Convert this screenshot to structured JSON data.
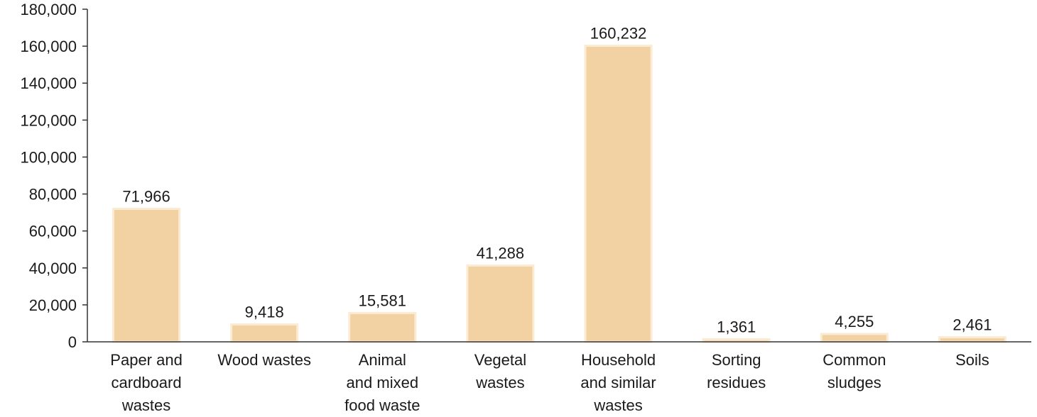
{
  "chart_data": {
    "type": "bar",
    "title": "",
    "xlabel": "",
    "ylabel": "",
    "ylim": [
      0,
      180000
    ],
    "yticks": [
      0,
      20000,
      40000,
      60000,
      80000,
      100000,
      120000,
      140000,
      160000,
      180000
    ],
    "ytick_labels": [
      "0",
      "20,000",
      "40,000",
      "60,000",
      "80,000",
      "100,000",
      "120,000",
      "140,000",
      "160,000",
      "180,000"
    ],
    "grid": false,
    "legend": "none",
    "categories": [
      [
        "Paper and",
        "cardboard",
        "wastes"
      ],
      [
        "Wood wastes"
      ],
      [
        "Animal",
        "and mixed",
        "food waste"
      ],
      [
        "Vegetal",
        "wastes"
      ],
      [
        "Household",
        "and similar",
        "wastes"
      ],
      [
        "Sorting",
        "residues"
      ],
      [
        "Common",
        "sludges"
      ],
      [
        "Soils"
      ]
    ],
    "values": [
      71966,
      9418,
      15581,
      41288,
      160232,
      1361,
      4255,
      2461
    ],
    "data_labels": [
      "71,966",
      "9,418",
      "15,581",
      "41,288",
      "160,232",
      "1,361",
      "4,255",
      "2,461"
    ],
    "colors": {
      "bar_fill": "#F2D1A2",
      "bar_edge": "#FBEBD3",
      "axis": "#333333",
      "text": "#1a1a1a"
    }
  }
}
